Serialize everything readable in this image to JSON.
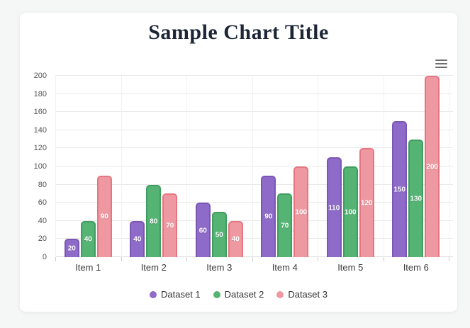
{
  "window": {
    "background_color": "#f5f6f6",
    "card_color": "#ffffff"
  },
  "header": {
    "title": "Sample Chart Title",
    "title_color": "#1c2637"
  },
  "menu": {
    "icon": "hamburger-menu-icon",
    "icon_color": "#6e6e6e"
  },
  "chart_data": {
    "type": "bar",
    "title": "Sample Chart Title",
    "categories": [
      "Item 1",
      "Item 2",
      "Item 3",
      "Item 4",
      "Item 5",
      "Item 6"
    ],
    "series": [
      {
        "name": "Dataset 1",
        "values": [
          20,
          40,
          60,
          90,
          110,
          150
        ],
        "fill": "#8e6bc8",
        "border": "#7b57b5"
      },
      {
        "name": "Dataset 2",
        "values": [
          40,
          80,
          50,
          70,
          100,
          130
        ],
        "fill": "#55b474",
        "border": "#3e9e60"
      },
      {
        "name": "Dataset 3",
        "values": [
          90,
          70,
          40,
          100,
          120,
          200
        ],
        "fill": "#ee99a1",
        "border": "#e57680"
      }
    ],
    "ylim": [
      0,
      200
    ],
    "yticks": [
      0,
      20,
      40,
      60,
      80,
      100,
      120,
      140,
      160,
      180,
      200
    ],
    "grid": true,
    "show_bar_value_labels": true,
    "value_label_color": "#ffffff",
    "legend_position": "bottom",
    "xlabel": "",
    "ylabel": ""
  }
}
